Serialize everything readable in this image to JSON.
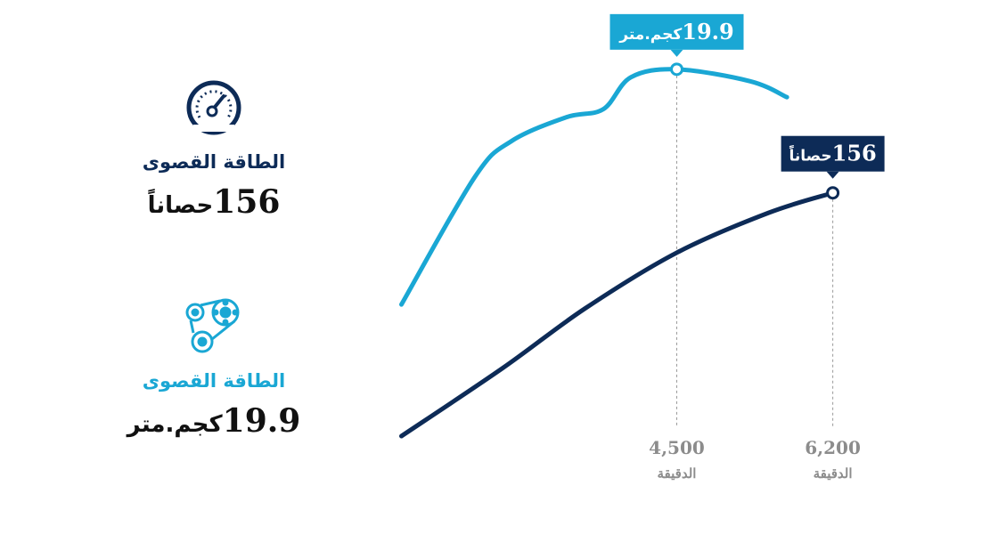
{
  "colors": {
    "torque": "#1aa7d4",
    "power": "#0d2b57",
    "icon_power": "#0d2b57",
    "icon_torque": "#1aa7d4"
  },
  "stats": {
    "power": {
      "icon": "speedometer-icon",
      "title": "الطاقة القصوى",
      "value": "156",
      "unit": "حصاناً"
    },
    "torque": {
      "icon": "belt-pulley-icon",
      "title": "الطاقة القصوى",
      "value": "19.9",
      "unit": "كجم.متر"
    }
  },
  "chart_data": {
    "type": "line",
    "title": "",
    "xlabel": "",
    "ylabel": "",
    "x_unit": "الدقيقة",
    "xlim": [
      0,
      8000
    ],
    "ylim": [
      0,
      1
    ],
    "grid": false,
    "x_ticks": [
      {
        "value": 4500,
        "label": "4,500",
        "sublabel": "الدقيقة"
      },
      {
        "value": 6200,
        "label": "6,200",
        "sublabel": "الدقيقة"
      }
    ],
    "series": [
      {
        "id": "torque",
        "color": "#1aa7d4",
        "points": [
          [
            1500,
            0.33
          ],
          [
            2300,
            0.65
          ],
          [
            2700,
            0.74
          ],
          [
            3300,
            0.8
          ],
          [
            3700,
            0.82
          ],
          [
            4000,
            0.9
          ],
          [
            4500,
            0.92
          ],
          [
            5300,
            0.89
          ],
          [
            5700,
            0.85
          ]
        ],
        "peak": {
          "x": 4500,
          "y": 0.92,
          "label_value": "19.9",
          "label_unit": "كجم.متر",
          "label_position": "above"
        }
      },
      {
        "id": "power",
        "color": "#0d2b57",
        "points": [
          [
            1500,
            0.0
          ],
          [
            2600,
            0.17
          ],
          [
            3500,
            0.32
          ],
          [
            4500,
            0.46
          ],
          [
            5500,
            0.56
          ],
          [
            6200,
            0.61
          ]
        ],
        "peak": {
          "x": 6200,
          "y": 0.61,
          "label_value": "156",
          "label_unit": "حصاناً",
          "label_position": "above-right"
        }
      }
    ]
  }
}
